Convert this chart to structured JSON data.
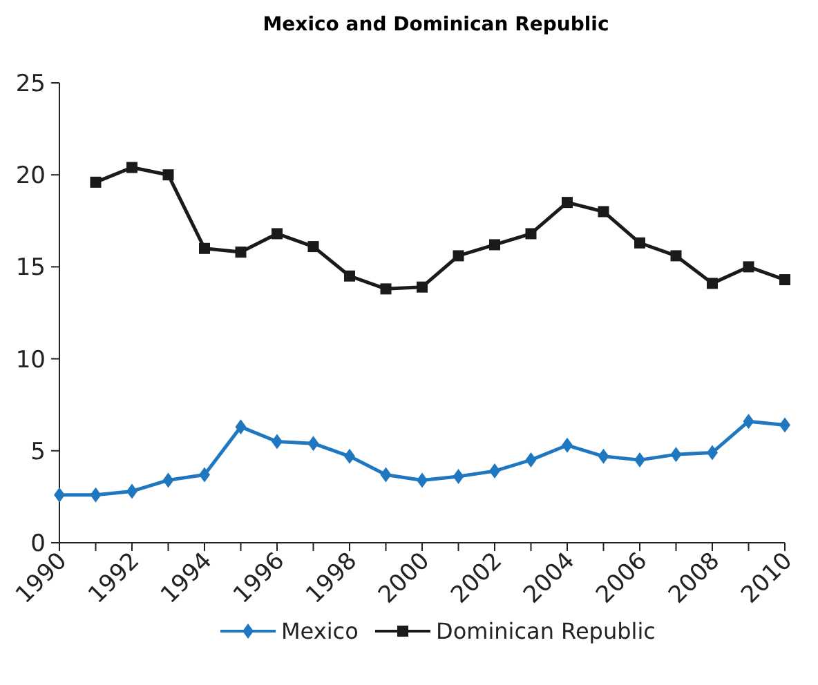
{
  "chart_data": {
    "type": "line",
    "title": "Mexico and Dominican Republic",
    "x": [
      1990,
      1991,
      1992,
      1993,
      1994,
      1995,
      1996,
      1997,
      1998,
      1999,
      2000,
      2001,
      2002,
      2003,
      2004,
      2005,
      2006,
      2007,
      2008,
      2009,
      2010
    ],
    "series": [
      {
        "name": "Mexico",
        "color": "#1f77c0",
        "marker": "diamond",
        "values": [
          2.6,
          2.6,
          2.8,
          3.4,
          3.7,
          6.3,
          5.5,
          5.4,
          4.7,
          3.7,
          3.4,
          3.6,
          3.9,
          4.5,
          5.3,
          4.7,
          4.5,
          4.8,
          4.9,
          6.6,
          6.4
        ]
      },
      {
        "name": "Dominican Republic",
        "color": "#1a1a1a",
        "marker": "square",
        "values": [
          null,
          19.6,
          20.4,
          20.0,
          16.0,
          15.8,
          16.8,
          16.1,
          14.5,
          13.8,
          13.9,
          15.6,
          16.2,
          16.8,
          18.5,
          18.0,
          16.3,
          15.6,
          14.1,
          15.0,
          14.3
        ]
      }
    ],
    "xlim": [
      1990,
      2010
    ],
    "xticks": [
      1990,
      1992,
      1994,
      1996,
      1998,
      2000,
      2002,
      2004,
      2006,
      2008,
      2010
    ],
    "ylim": [
      0,
      25
    ],
    "yticks": [
      0,
      5,
      10,
      15,
      20,
      25
    ],
    "grid": false,
    "legend": "bottom",
    "line_style": "solid"
  }
}
